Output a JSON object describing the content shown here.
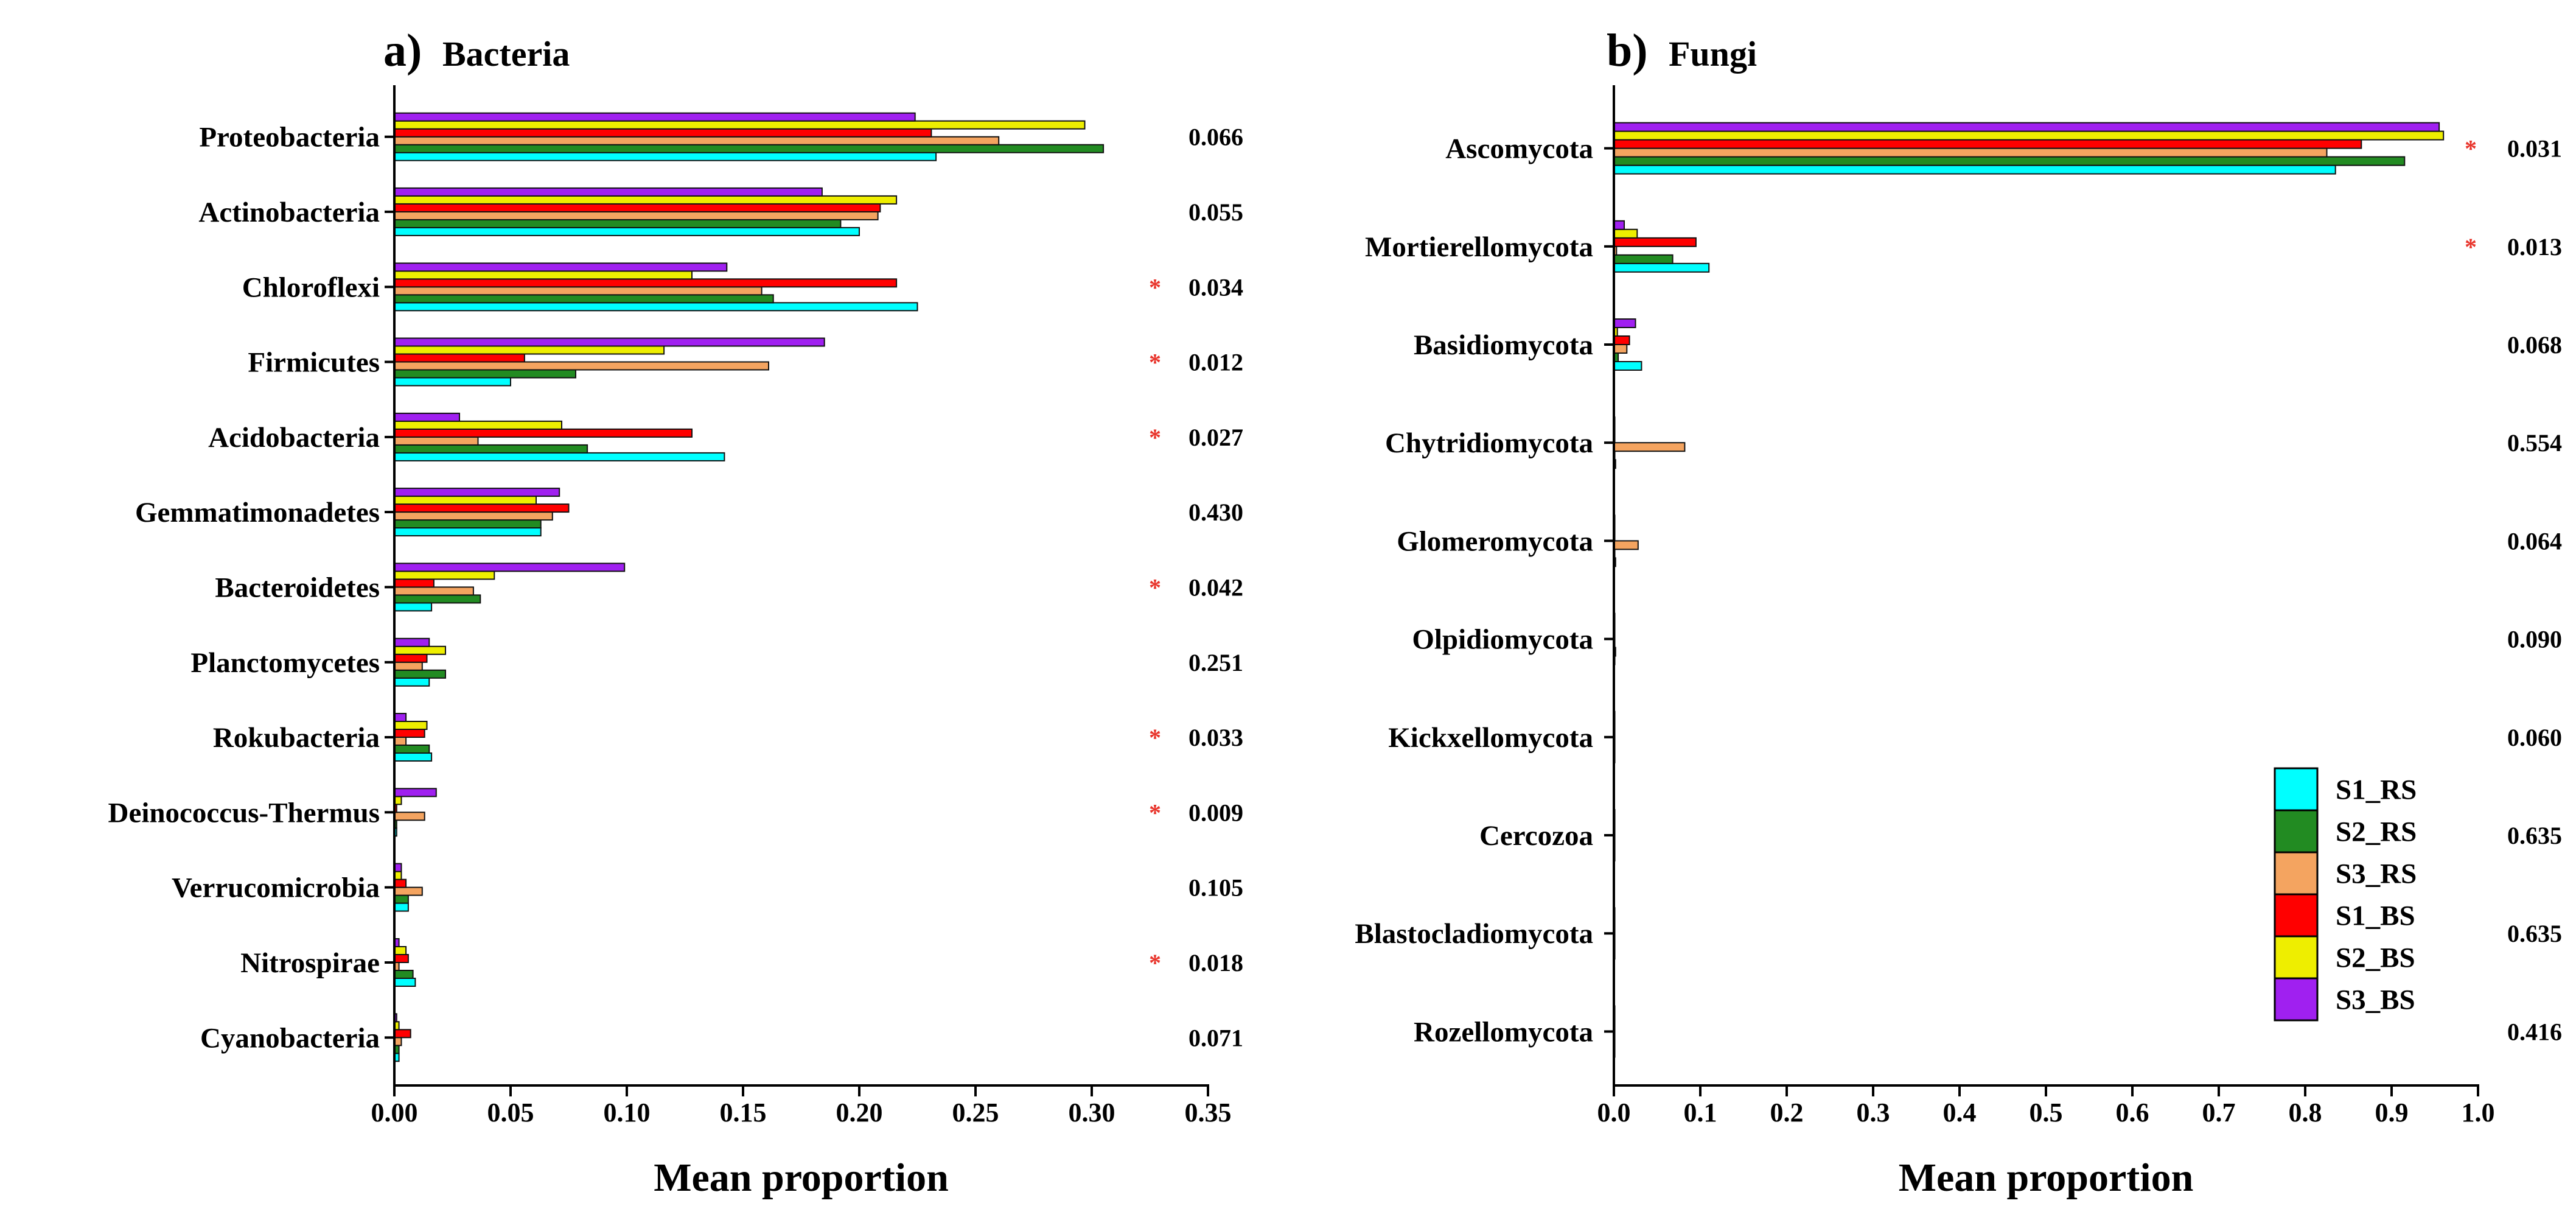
{
  "legend": {
    "items": [
      {
        "label": "S1_RS",
        "color": "#00ffff"
      },
      {
        "label": "S2_RS",
        "color": "#228b22"
      },
      {
        "label": "S3_RS",
        "color": "#f4a460"
      },
      {
        "label": "S1_BS",
        "color": "#ff0000"
      },
      {
        "label": "S2_BS",
        "color": "#eeee00"
      },
      {
        "label": "S3_BS",
        "color": "#a020f0"
      }
    ]
  },
  "chart_data": [
    {
      "type": "bar",
      "orientation": "horizontal",
      "panel_letter": "a)",
      "title": "Bacteria",
      "xlabel": "Mean proportion",
      "ylabel": "",
      "xlim": [
        0,
        0.35
      ],
      "xticks": [
        "0.00",
        "0.05",
        "0.10",
        "0.15",
        "0.20",
        "0.25",
        "0.30",
        "0.35"
      ],
      "categories": [
        "Proteobacteria",
        "Actinobacteria",
        "Chloroflexi",
        "Firmicutes",
        "Acidobacteria",
        "Gemmatimonadetes",
        "Bacteroidetes",
        "Planctomycetes",
        "Rokubacteria",
        "Deinococcus-Thermus",
        "Verrucomicrobia",
        "Nitrospirae",
        "Cyanobacteria"
      ],
      "series": [
        {
          "name": "S1_RS",
          "values": [
            0.233,
            0.2,
            0.225,
            0.05,
            0.142,
            0.063,
            0.016,
            0.015,
            0.016,
            0.001,
            0.006,
            0.009,
            0.002
          ]
        },
        {
          "name": "S2_RS",
          "values": [
            0.305,
            0.192,
            0.163,
            0.078,
            0.083,
            0.063,
            0.037,
            0.022,
            0.015,
            0.001,
            0.006,
            0.008,
            0.002
          ]
        },
        {
          "name": "S3_RS",
          "values": [
            0.26,
            0.208,
            0.158,
            0.161,
            0.036,
            0.068,
            0.034,
            0.012,
            0.005,
            0.013,
            0.012,
            0.002,
            0.003
          ]
        },
        {
          "name": "S1_BS",
          "values": [
            0.231,
            0.209,
            0.216,
            0.056,
            0.128,
            0.075,
            0.017,
            0.014,
            0.013,
            0.001,
            0.005,
            0.006,
            0.007
          ]
        },
        {
          "name": "S2_BS",
          "values": [
            0.297,
            0.216,
            0.128,
            0.116,
            0.072,
            0.061,
            0.043,
            0.022,
            0.014,
            0.003,
            0.003,
            0.005,
            0.002
          ]
        },
        {
          "name": "S3_BS",
          "values": [
            0.224,
            0.184,
            0.143,
            0.185,
            0.028,
            0.071,
            0.099,
            0.015,
            0.005,
            0.018,
            0.003,
            0.002,
            0.001
          ]
        }
      ],
      "p_values": [
        "0.066",
        "0.055",
        "0.034",
        "0.012",
        "0.027",
        "0.430",
        "0.042",
        "0.251",
        "0.033",
        "0.009",
        "0.105",
        "0.018",
        "0.071"
      ],
      "significant": [
        false,
        false,
        true,
        true,
        true,
        false,
        true,
        false,
        true,
        true,
        false,
        true,
        false
      ],
      "significance_marker": "*"
    },
    {
      "type": "bar",
      "orientation": "horizontal",
      "panel_letter": "b)",
      "title": "Fungi",
      "xlabel": "Mean proportion",
      "ylabel": "",
      "xlim": [
        0,
        1.0
      ],
      "xticks": [
        "0.0",
        "0.1",
        "0.2",
        "0.3",
        "0.4",
        "0.5",
        "0.6",
        "0.7",
        "0.8",
        "0.9",
        "1.0"
      ],
      "categories": [
        "Ascomycota",
        "Mortierellomycota",
        "Basidiomycota",
        "Chytridiomycota",
        "Glomeromycota",
        "Olpidiomycota",
        "Kickxellomycota",
        "Cercozoa",
        "Blastocladiomycota",
        "Rozellomycota"
      ],
      "series": [
        {
          "name": "S1_RS",
          "values": [
            0.835,
            0.11,
            0.032,
            0.002,
            0.002,
            0.001,
            0.001,
            0.001,
            0.001,
            0.001
          ]
        },
        {
          "name": "S2_RS",
          "values": [
            0.915,
            0.068,
            0.005,
            0.001,
            0.001,
            0.002,
            0.001,
            0.001,
            0.001,
            0.001
          ]
        },
        {
          "name": "S3_RS",
          "values": [
            0.825,
            0.003,
            0.015,
            0.082,
            0.028,
            0.001,
            0.001,
            0.001,
            0.001,
            0.001
          ]
        },
        {
          "name": "S1_BS",
          "values": [
            0.865,
            0.095,
            0.018,
            0.001,
            0.001,
            0.001,
            0.001,
            0.001,
            0.001,
            0.001
          ]
        },
        {
          "name": "S2_BS",
          "values": [
            0.96,
            0.027,
            0.004,
            0.001,
            0.001,
            0.001,
            0.001,
            0.001,
            0.001,
            0.001
          ]
        },
        {
          "name": "S3_BS",
          "values": [
            0.955,
            0.012,
            0.025,
            0.001,
            0.001,
            0.001,
            0.001,
            0.001,
            0.001,
            0.001
          ]
        }
      ],
      "p_values": [
        "0.031",
        "0.013",
        "0.068",
        "0.554",
        "0.064",
        "0.090",
        "0.060",
        "0.635",
        "0.635",
        "0.416"
      ],
      "significant": [
        true,
        true,
        false,
        false,
        false,
        false,
        false,
        false,
        false,
        false
      ],
      "significance_marker": "*"
    }
  ]
}
